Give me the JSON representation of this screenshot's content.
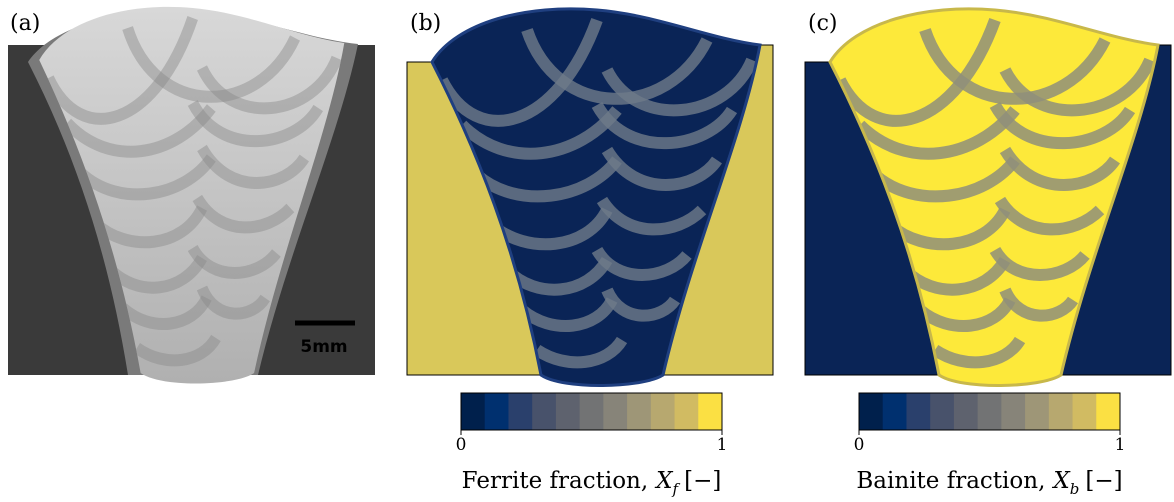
{
  "panels": [
    {
      "label": "(a)",
      "scale_bar": "5mm"
    },
    {
      "label": "(b)",
      "colorbar": {
        "ticks": [
          0,
          1
        ],
        "label": "Ferrite fraction,",
        "symbol": "X",
        "subscript": "f",
        "unit": "[−]"
      }
    },
    {
      "label": "(c)",
      "colorbar": {
        "ticks": [
          0,
          1
        ],
        "label": "Bainite fraction,",
        "symbol": "X",
        "subscript": "b",
        "unit": "[−]"
      }
    }
  ]
}
